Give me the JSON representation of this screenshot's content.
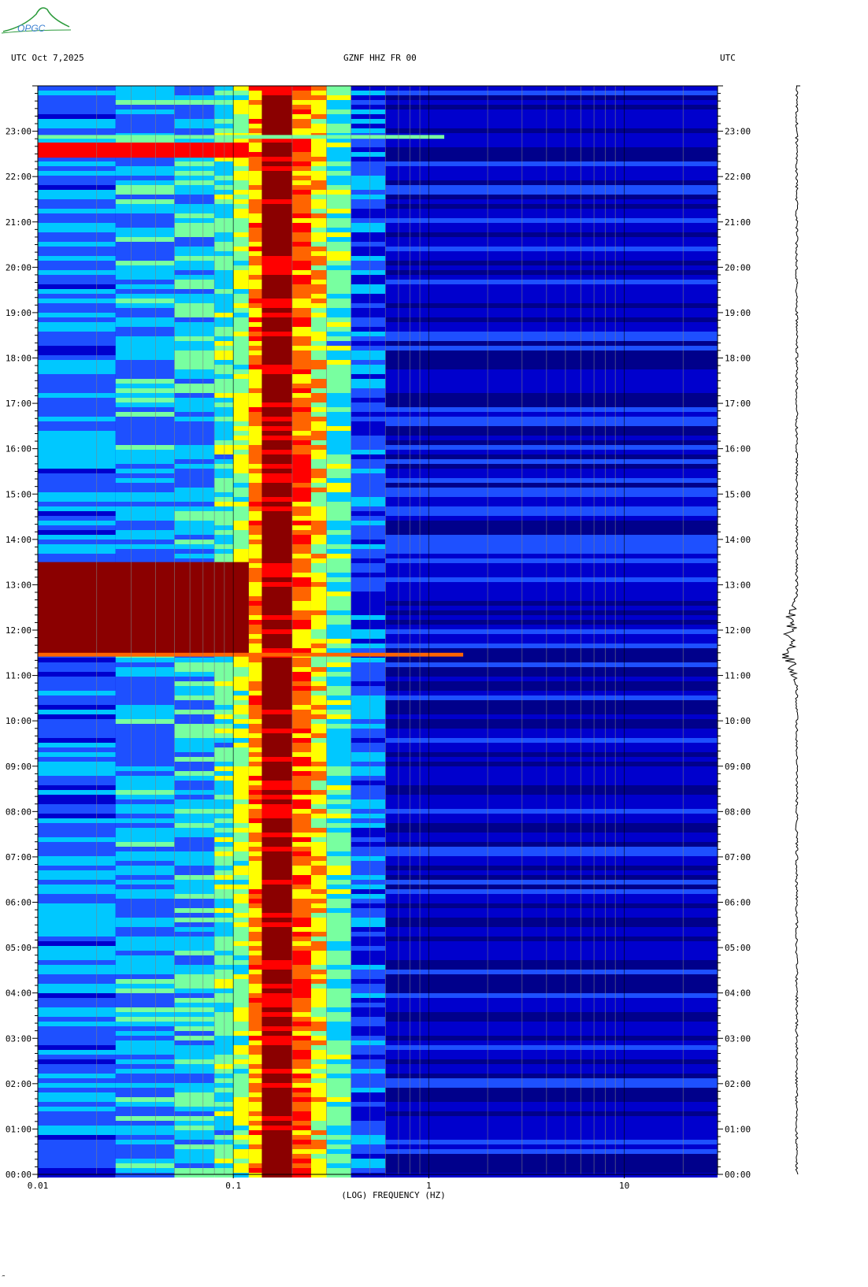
{
  "header": {
    "left": "UTC  Oct 7,2025",
    "center": "GZNF HHZ FR 00",
    "right": "UTC"
  },
  "logo": {
    "text": "OPGC",
    "color": "#2a9a3a"
  },
  "footer_mark": "‴",
  "chart_data": {
    "type": "heatmap",
    "title": "GZNF HHZ FR 00",
    "date": "Oct 7,2025",
    "xlabel": "(LOG) FREQUENCY (HZ)",
    "ylabel": "UTC",
    "x_scale": "log",
    "xlim": [
      0.01,
      30
    ],
    "x_ticks": [
      "0.01",
      "0.1",
      "1",
      "10"
    ],
    "ylim": [
      "00:00",
      "24:00"
    ],
    "y_ticks": [
      "00:00",
      "01:00",
      "02:00",
      "03:00",
      "04:00",
      "05:00",
      "06:00",
      "07:00",
      "08:00",
      "09:00",
      "10:00",
      "11:00",
      "12:00",
      "13:00",
      "14:00",
      "15:00",
      "16:00",
      "17:00",
      "18:00",
      "19:00",
      "20:00",
      "21:00",
      "22:00",
      "23:00"
    ],
    "colormap": [
      "#00008b",
      "#0000cd",
      "#1e50ff",
      "#00c8ff",
      "#78ffa0",
      "#ffff00",
      "#ff6400",
      "#ff0000",
      "#8b0000"
    ],
    "bands_hz": [
      {
        "from": 0.01,
        "to": 0.025,
        "level": 0.3
      },
      {
        "from": 0.025,
        "to": 0.05,
        "level": 0.34
      },
      {
        "from": 0.05,
        "to": 0.08,
        "level": 0.38
      },
      {
        "from": 0.08,
        "to": 0.1,
        "level": 0.45
      },
      {
        "from": 0.1,
        "to": 0.12,
        "level": 0.55
      },
      {
        "from": 0.12,
        "to": 0.14,
        "level": 0.72
      },
      {
        "from": 0.14,
        "to": 0.2,
        "level": 1.0
      },
      {
        "from": 0.2,
        "to": 0.25,
        "level": 0.78
      },
      {
        "from": 0.25,
        "to": 0.3,
        "level": 0.62
      },
      {
        "from": 0.3,
        "to": 0.4,
        "level": 0.45
      },
      {
        "from": 0.4,
        "to": 0.6,
        "level": 0.25
      },
      {
        "from": 0.6,
        "to": 30,
        "level": 0.1
      }
    ],
    "events": [
      {
        "start": "11:25",
        "end": "13:30",
        "fmax_hz": 0.12,
        "level": 1.0
      },
      {
        "start": "22:25",
        "end": "22:45",
        "fmax_hz": 0.12,
        "level": 0.9
      },
      {
        "start": "11:25",
        "end": "11:30",
        "fmax_hz": 1.5,
        "level": 0.8
      },
      {
        "start": "22:50",
        "end": "22:55",
        "fmax_hz": 1.2,
        "level": 0.5
      }
    ],
    "trace": {
      "bursts": [
        {
          "time": "11:25",
          "amplitude": 1.0
        },
        {
          "time": "12:10",
          "amplitude": 0.8
        }
      ]
    },
    "grid": true,
    "grid_color": "#808080"
  }
}
